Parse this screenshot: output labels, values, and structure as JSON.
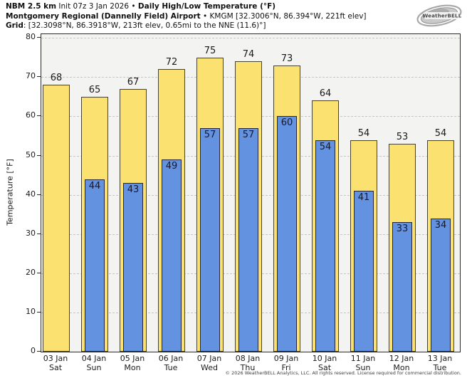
{
  "header": {
    "model": "NBM 2.5 km",
    "init": "Init 07z 3 Jan 2026",
    "bullet": "•",
    "product": "Daily High/Low Temperature (°F)",
    "station_name": "Montgomery Regional (Dannelly Field) Airport",
    "station_meta": "KMGM [32.3006°N, 86.394°W, 221ft elev]",
    "grid_label": "Grid",
    "grid_meta": ": [32.3098°N, 86.3918°W, 213ft elev, 0.65mi to the NNE (11.6)°]"
  },
  "logo": {
    "text": "WeatherBELL"
  },
  "chart_data": {
    "type": "bar",
    "title": "Daily High/Low Temperature (°F)",
    "ylabel": "Temperature [°F]",
    "ylim": [
      0,
      80
    ],
    "yticks": [
      0,
      10,
      20,
      30,
      40,
      50,
      60,
      70,
      80
    ],
    "grid": "horizontal dashed",
    "legend": "none",
    "categories": [
      {
        "date": "03 Jan",
        "day": "Sat"
      },
      {
        "date": "04 Jan",
        "day": "Sun"
      },
      {
        "date": "05 Jan",
        "day": "Mon"
      },
      {
        "date": "06 Jan",
        "day": "Tue"
      },
      {
        "date": "07 Jan",
        "day": "Wed"
      },
      {
        "date": "08 Jan",
        "day": "Thu"
      },
      {
        "date": "09 Jan",
        "day": "Fri"
      },
      {
        "date": "10 Jan",
        "day": "Sat"
      },
      {
        "date": "11 Jan",
        "day": "Sun"
      },
      {
        "date": "12 Jan",
        "day": "Mon"
      },
      {
        "date": "13 Jan",
        "day": "Tue"
      }
    ],
    "series": [
      {
        "name": "High",
        "color": "#fae170",
        "values": [
          68,
          65,
          67,
          72,
          75,
          74,
          73,
          64,
          54,
          53,
          54
        ]
      },
      {
        "name": "Low",
        "color": "#6392e0",
        "values": [
          null,
          44,
          43,
          49,
          57,
          57,
          60,
          54,
          41,
          33,
          34
        ]
      }
    ]
  },
  "footer": {
    "copyright": "© 2026 WeatherBELL Analytics, LLC. All rights reserved. License required for commercial distribution."
  }
}
